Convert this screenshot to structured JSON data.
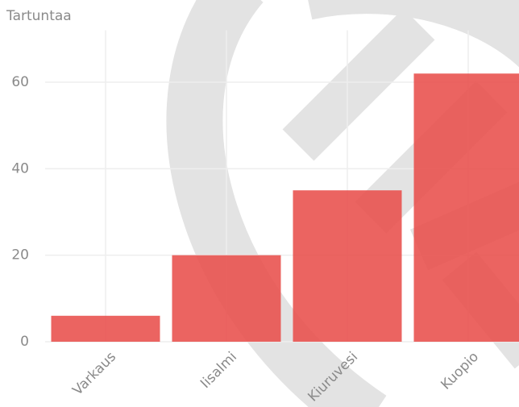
{
  "chart_data": {
    "type": "bar",
    "y_label": "Tartuntaa",
    "categories": [
      "Varkaus",
      "Iisalmi",
      "Kiuruvesi",
      "Kuopio"
    ],
    "values": [
      6,
      20,
      35,
      62
    ],
    "color": "#e84e4b",
    "ylim": [
      0,
      72
    ],
    "yticks": [
      0,
      20,
      40,
      60
    ],
    "grid": true
  }
}
